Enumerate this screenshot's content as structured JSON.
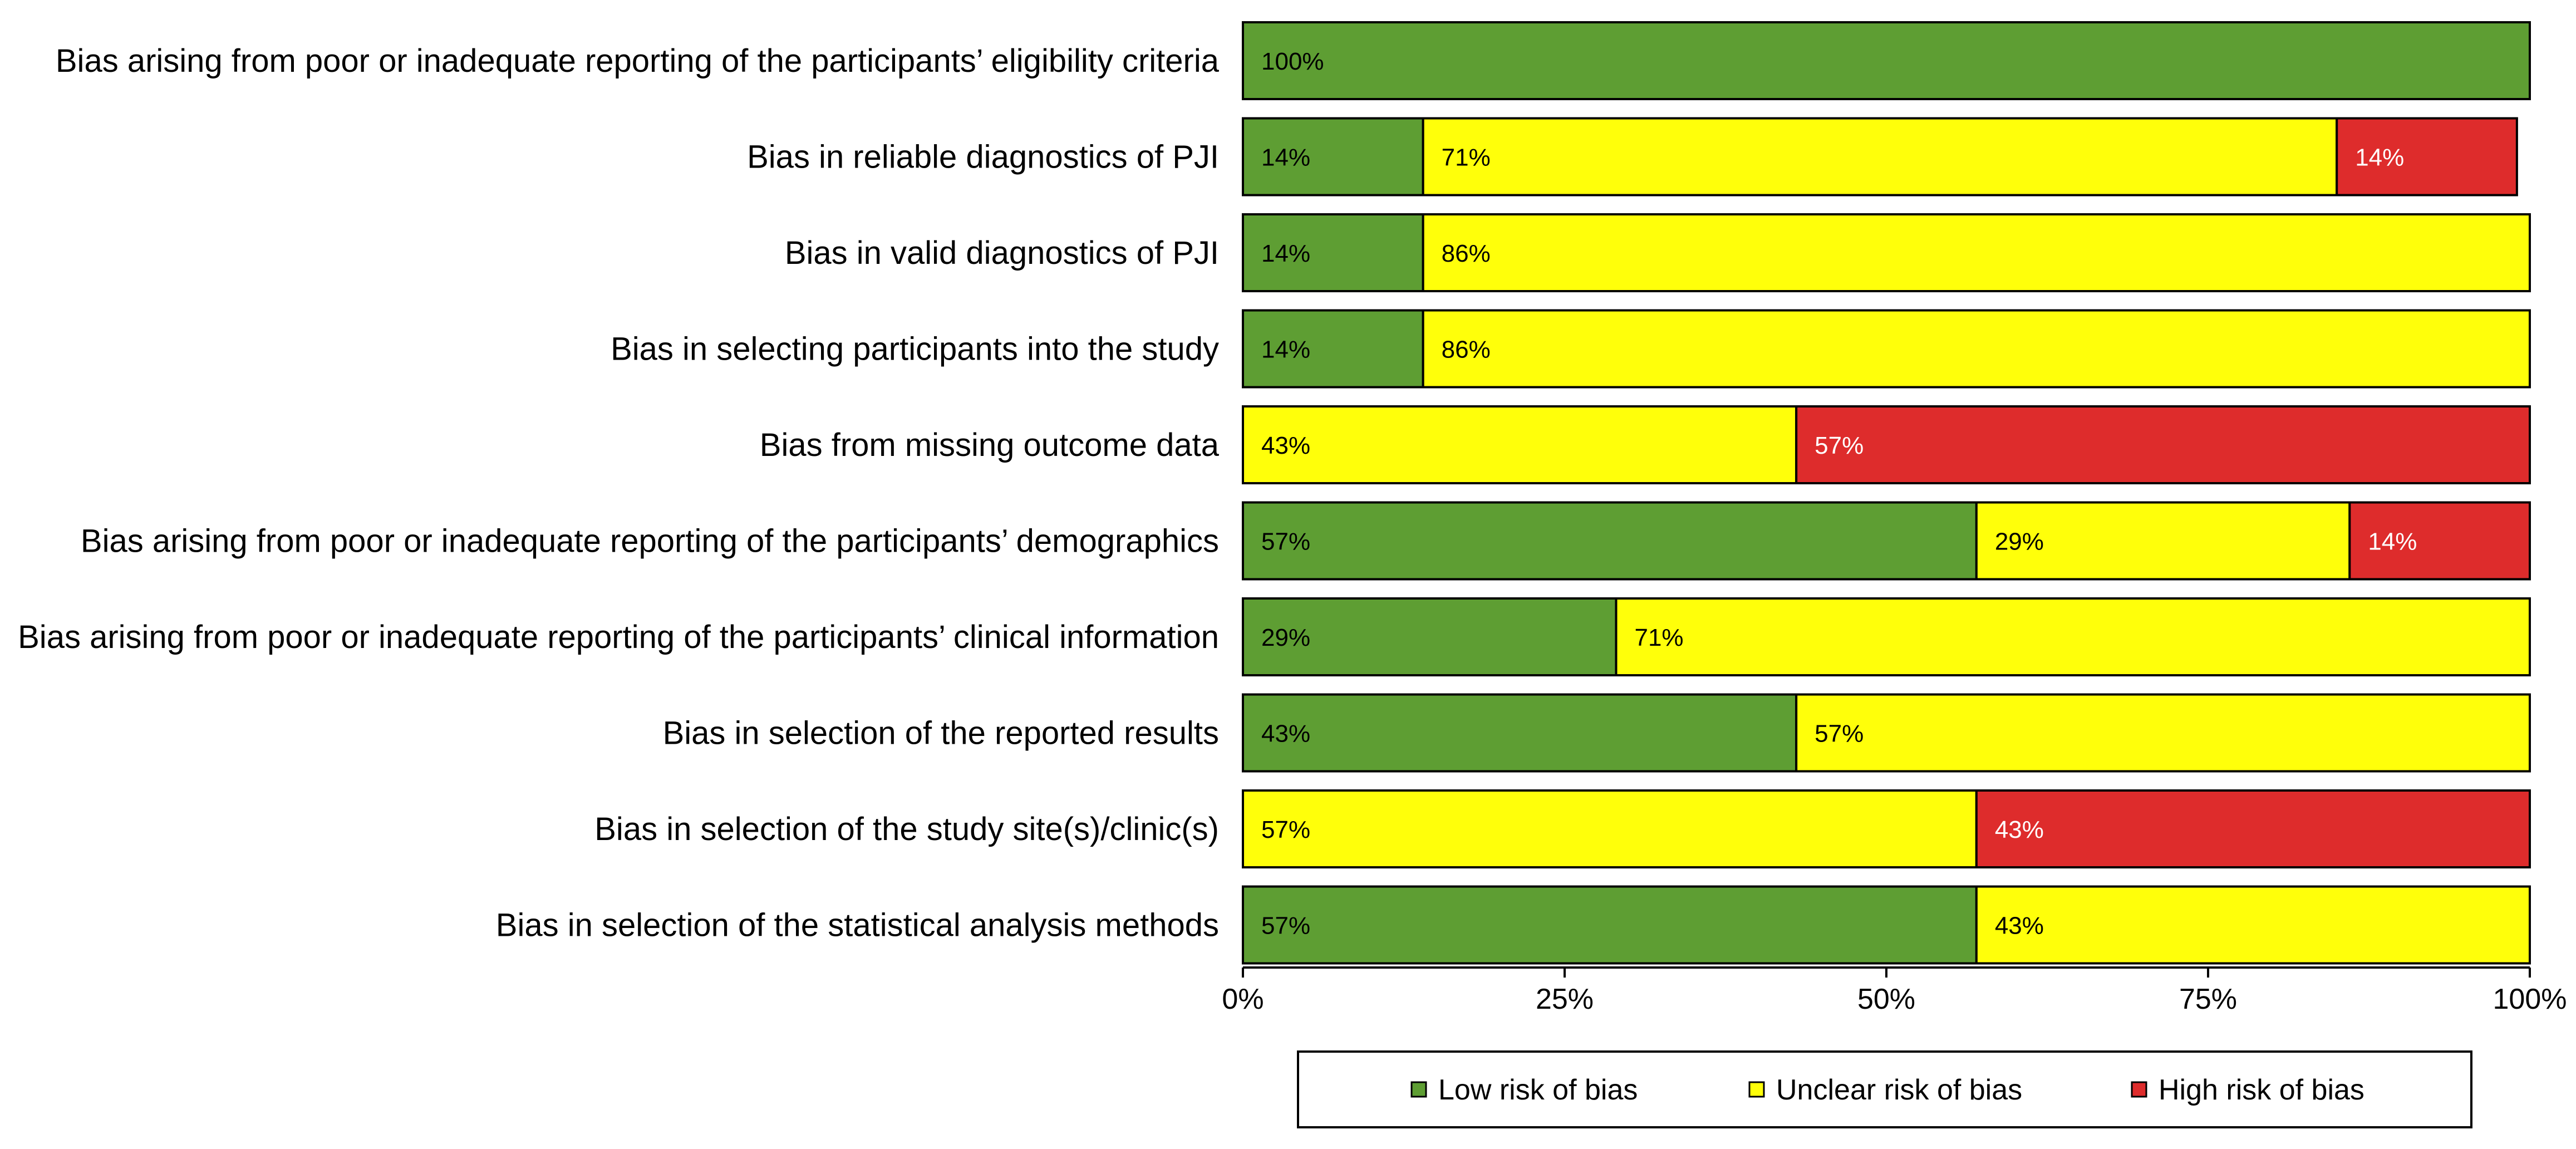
{
  "chart_data": {
    "type": "bar",
    "orientation": "horizontal",
    "stacked": true,
    "categories": [
      "Bias arising from poor or inadequate reporting of the participants’ eligibility criteria",
      "Bias in reliable diagnostics of PJI",
      "Bias in valid diagnostics of PJI",
      "Bias in selecting participants into the study",
      "Bias from missing outcome data",
      "Bias arising from poor or inadequate reporting of the participants’ demographics",
      "Bias arising from poor or inadequate reporting of the participants’ clinical information",
      "Bias in selection of the reported results",
      "Bias in selection of the study site(s)/clinic(s)",
      "Bias in selection of the statistical analysis methods"
    ],
    "series": [
      {
        "name": "Low risk of bias",
        "color": "#5e9e33",
        "label_color": "#000000",
        "values": [
          100,
          14,
          14,
          14,
          0,
          57,
          29,
          43,
          0,
          57
        ],
        "labels": [
          "100%",
          "14%",
          "14%",
          "14%",
          "",
          "57%",
          "29%",
          "43%",
          "",
          "57%"
        ]
      },
      {
        "name": "Unclear risk of bias",
        "color": "#ffff0a",
        "label_color": "#000000",
        "values": [
          0,
          71,
          86,
          86,
          43,
          29,
          71,
          57,
          57,
          43
        ],
        "labels": [
          "",
          "71%",
          "86%",
          "86%",
          "43%",
          "29%",
          "71%",
          "57%",
          "57%",
          "43%"
        ]
      },
      {
        "name": "High risk of bias",
        "color": "#de2c2c",
        "label_color": "#ffffff",
        "values": [
          0,
          14,
          0,
          0,
          57,
          14,
          0,
          0,
          43,
          0
        ],
        "labels": [
          "",
          "14%",
          "",
          "",
          "57%",
          "14%",
          "",
          "",
          "43%",
          ""
        ]
      }
    ],
    "xlim": [
      0,
      100
    ],
    "xticks": [
      0,
      25,
      50,
      75,
      100
    ],
    "xtick_labels": [
      "0%",
      "25%",
      "50%",
      "75%",
      "100%"
    ],
    "legend": {
      "position": "bottom",
      "entries": [
        "Low risk of bias",
        "Unclear risk of bias",
        "High risk of bias"
      ]
    },
    "grid": false
  }
}
